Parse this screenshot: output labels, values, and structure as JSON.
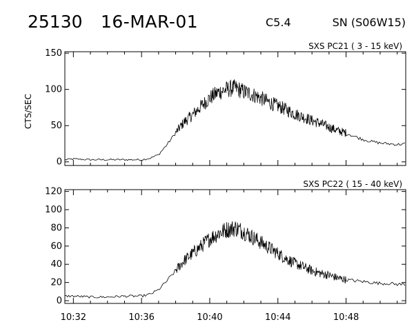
{
  "header": {
    "event_id": "25130",
    "date": "16-MAR-01",
    "flare_class": "C5.4",
    "location": "SN (S06W15)"
  },
  "chart_data": [
    {
      "type": "line",
      "panel_label": "SXS PC21  ( 3 - 15 keV)",
      "ylabel": "CTS/SEC",
      "xlabel": "",
      "xlim": [
        "10:31:30",
        "10:51:30"
      ],
      "ylim": [
        -5,
        152
      ],
      "yticks": [
        0,
        50,
        100,
        150
      ],
      "xticks": [
        "10:32",
        "10:36",
        "10:40",
        "10:44",
        "10:48"
      ],
      "dense_segment": [
        "10:38",
        "10:48"
      ],
      "series": [
        {
          "x": [
            "10:31:30",
            "10:32:00",
            "10:33:00",
            "10:34:00",
            "10:35:00",
            "10:36:00",
            "10:36:30",
            "10:37:00",
            "10:37:30",
            "10:38:00",
            "10:38:30",
            "10:39:00",
            "10:39:30",
            "10:40:00",
            "10:40:30",
            "10:41:00",
            "10:41:30",
            "10:42:00",
            "10:42:30",
            "10:43:00",
            "10:43:30",
            "10:44:00",
            "10:44:30",
            "10:45:00",
            "10:45:30",
            "10:46:00",
            "10:46:30",
            "10:47:00",
            "10:47:30",
            "10:48:00",
            "10:48:30",
            "10:49:00",
            "10:49:30",
            "10:50:00",
            "10:50:30",
            "10:51:00",
            "10:51:30"
          ],
          "values": [
            3,
            4,
            3,
            3,
            3,
            3,
            5,
            10,
            24,
            40,
            55,
            65,
            77,
            88,
            96,
            100,
            102,
            97,
            93,
            88,
            82,
            77,
            72,
            66,
            62,
            57,
            53,
            48,
            43,
            40,
            35,
            31,
            28,
            26,
            25,
            24,
            25
          ]
        }
      ]
    },
    {
      "type": "line",
      "panel_label": "SXS PC22  ( 15 - 40 keV)",
      "ylabel": "",
      "xlabel": "",
      "xlim": [
        "10:31:30",
        "10:51:30"
      ],
      "ylim": [
        -3,
        122
      ],
      "yticks": [
        0,
        20,
        40,
        60,
        80,
        100,
        120
      ],
      "xticks": [
        "10:32",
        "10:36",
        "10:40",
        "10:44",
        "10:48"
      ],
      "dense_segment": [
        "10:38",
        "10:48"
      ],
      "series": [
        {
          "x": [
            "10:31:30",
            "10:32:00",
            "10:33:00",
            "10:34:00",
            "10:35:00",
            "10:36:00",
            "10:36:30",
            "10:37:00",
            "10:37:30",
            "10:38:00",
            "10:38:30",
            "10:39:00",
            "10:39:30",
            "10:40:00",
            "10:40:30",
            "10:41:00",
            "10:41:30",
            "10:42:00",
            "10:42:30",
            "10:43:00",
            "10:43:30",
            "10:44:00",
            "10:44:30",
            "10:45:00",
            "10:45:30",
            "10:46:00",
            "10:46:30",
            "10:47:00",
            "10:47:30",
            "10:48:00",
            "10:48:30",
            "10:49:00",
            "10:49:30",
            "10:50:00",
            "10:50:30",
            "10:51:00",
            "10:51:30"
          ],
          "values": [
            5,
            5,
            4,
            4,
            5,
            5,
            7,
            12,
            22,
            33,
            44,
            52,
            60,
            68,
            74,
            78,
            80,
            76,
            70,
            64,
            58,
            52,
            46,
            41,
            37,
            33,
            30,
            28,
            25,
            23,
            22,
            21,
            20,
            19,
            19,
            18,
            18
          ]
        }
      ]
    }
  ]
}
